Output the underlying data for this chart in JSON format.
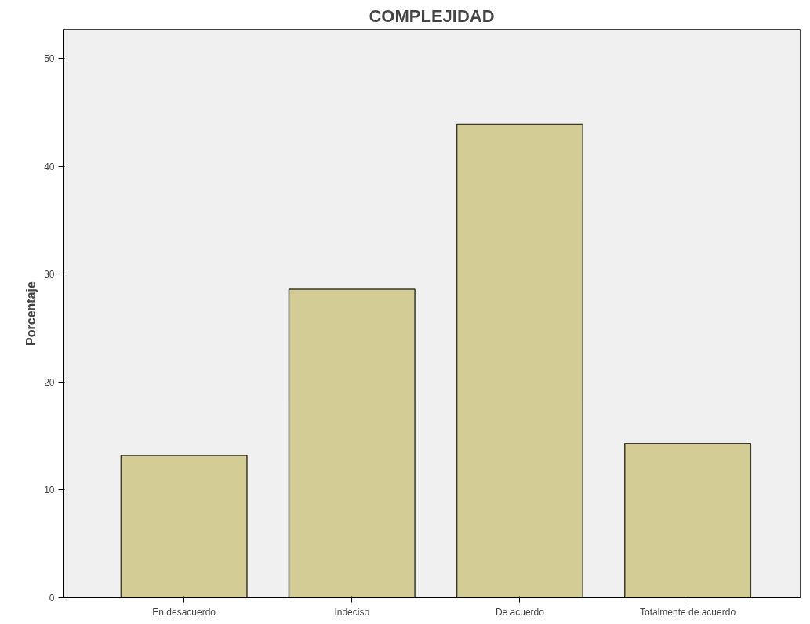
{
  "chart_data": {
    "type": "bar",
    "title": "COMPLEJIDAD",
    "ylabel": "Porcentaje",
    "categories": [
      "En desacuerdo",
      "Indeciso",
      "De acuerdo",
      "Totalmente de acuerdo"
    ],
    "values": [
      13.2,
      28.6,
      43.9,
      14.3
    ],
    "color": "#d3cd95",
    "ylim": [
      0,
      52.7
    ],
    "yticks": [
      0,
      10,
      20,
      30,
      40,
      50
    ],
    "grid": false
  }
}
